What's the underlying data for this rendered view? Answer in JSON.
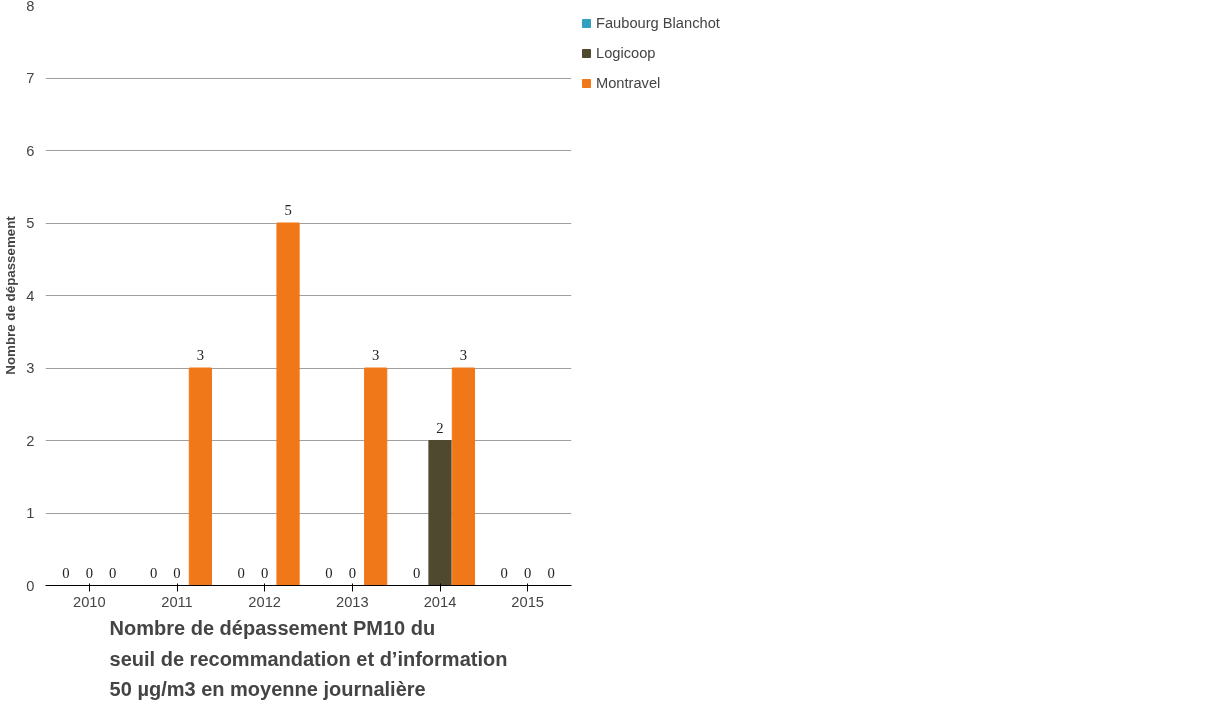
{
  "chart_data": {
    "type": "bar",
    "title": "Nombre de dépassement PM10 du\nseuil de recommandation et d’information\n50 µg/m3 en moyenne journalière",
    "ylabel": "Nombre de dépassement",
    "categories": [
      "2010",
      "2011",
      "2012",
      "2013",
      "2014",
      "2015"
    ],
    "series": [
      {
        "name": "Faubourg Blanchot",
        "color": "#31a0c0",
        "values": [
          0,
          0,
          0,
          0,
          0,
          0
        ]
      },
      {
        "name": "Logicoop",
        "color": "#4f4a2f",
        "values": [
          0,
          0,
          0,
          0,
          2,
          0
        ]
      },
      {
        "name": "Montravel",
        "color": "#f07818",
        "values": [
          0,
          3,
          5,
          3,
          3,
          0
        ]
      }
    ],
    "ylim": [
      0,
      8
    ],
    "yticks": [
      0,
      1,
      2,
      3,
      4,
      5,
      6,
      7,
      8
    ],
    "grid": "y",
    "legend": "right",
    "data_labels": true
  }
}
